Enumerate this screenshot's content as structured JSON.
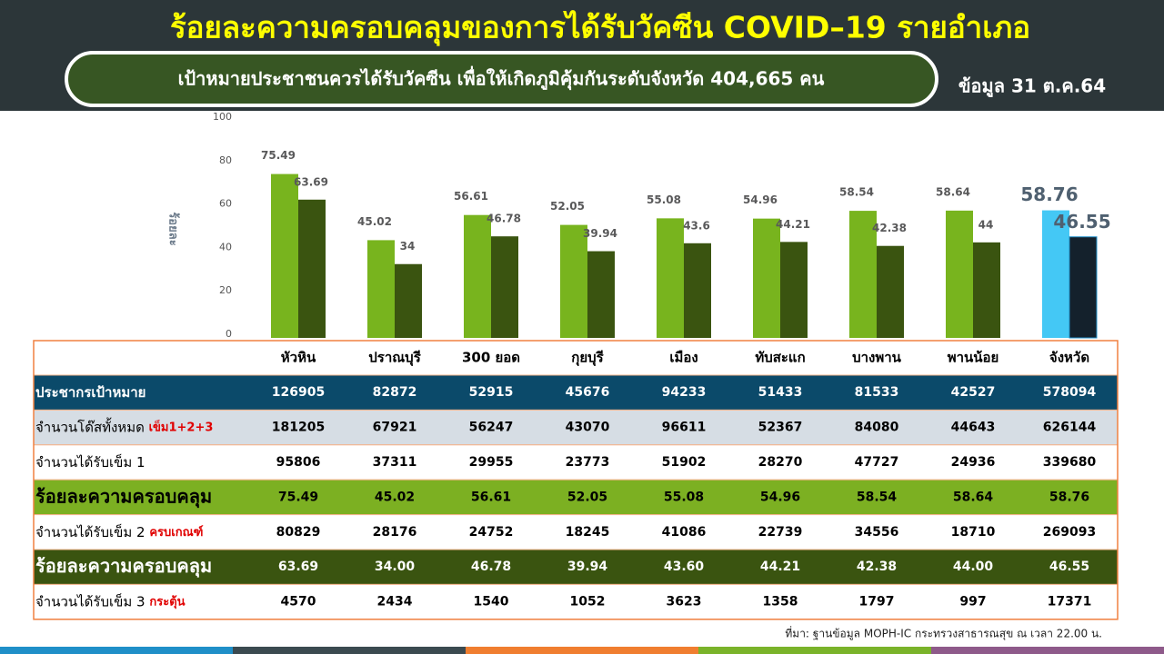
{
  "header": {
    "title": "ร้อยละความครอบคลุมของการได้รับวัคซีน COVID–19 รายอำเภอ",
    "subtitle": "เป้าหมายประชาชนควรได้รับวัคซีน  เพื่อให้เกิดภูมิคุ้มกันระดับจังหวัด 404,665 คน",
    "date": "ข้อมูล 31 ต.ค.64"
  },
  "chart_data": {
    "type": "bar",
    "y_label": "ร้อยละ",
    "categories": [
      "หัวหิน",
      "ปราณบุรี",
      "300  ยอด",
      "กุยบุรี",
      "เมือง",
      "ทับสะแก",
      "บางพาน",
      "พานน้อย",
      "จังหวัด"
    ],
    "series": [
      {
        "color": "#78b41e",
        "colors": [
          "#78b41e",
          "#78b41e",
          "#78b41e",
          "#78b41e",
          "#78b41e",
          "#78b41e",
          "#78b41e",
          "#78b41e",
          "#44c8f5"
        ],
        "values": [
          75.49,
          45.02,
          56.61,
          52.05,
          55.08,
          54.96,
          58.54,
          58.64,
          58.76
        ]
      },
      {
        "color": "#3a5410",
        "colors": [
          "#3a5410",
          "#3a5410",
          "#3a5410",
          "#3a5410",
          "#3a5410",
          "#3a5410",
          "#3a5410",
          "#3a5410",
          "#14212c"
        ],
        "values": [
          63.69,
          34,
          46.78,
          39.94,
          43.6,
          44.21,
          42.38,
          44,
          46.55
        ]
      }
    ],
    "ylim": [
      0,
      100
    ],
    "yticks": [
      0,
      20,
      40,
      60,
      80,
      100
    ],
    "grid": false
  },
  "table": {
    "rows": [
      {
        "label": "ประชากรเป้าหมาย",
        "cells": [
          "126905",
          "82872",
          "52915",
          "45676",
          "94233",
          "51433",
          "81533",
          "42527",
          "578094"
        ]
      },
      {
        "label": "จำนวนโด๊สทั้งหมด ",
        "note": "เข็ม1+2+3",
        "cells": [
          "181205",
          "67921",
          "56247",
          "43070",
          "96611",
          "52367",
          "84080",
          "44643",
          "626144"
        ]
      },
      {
        "label": "จำนวนได้รับเข็ม 1",
        "cells": [
          "95806",
          "37311",
          "29955",
          "23773",
          "51902",
          "28270",
          "47727",
          "24936",
          "339680"
        ]
      },
      {
        "label": "ร้อยละความครอบคลุม",
        "cells": [
          "75.49",
          "45.02",
          "56.61",
          "52.05",
          "55.08",
          "54.96",
          "58.54",
          "58.64",
          "58.76"
        ]
      },
      {
        "label": "จำนวนได้รับเข็ม 2 ",
        "note": "ครบเกณฑ์",
        "cells": [
          "80829",
          "28176",
          "24752",
          "18245",
          "41086",
          "22739",
          "34556",
          "18710",
          "269093"
        ]
      },
      {
        "label": "ร้อยละความครอบคลุม",
        "cells": [
          "63.69",
          "34.00",
          "46.78",
          "39.94",
          "43.60",
          "44.21",
          "42.38",
          "44.00",
          "46.55"
        ]
      },
      {
        "label": "จำนวนได้รับเข็ม 3 ",
        "note": "กระตุ้น",
        "cells": [
          "4570",
          "2434",
          "1540",
          "1052",
          "3623",
          "1358",
          "1797",
          "997",
          "17371"
        ]
      }
    ]
  },
  "source": "ที่มา: ฐานข้อมูล MOPH-IC กระทรวงสาธารณสุข ณ เวลา 22.00 น."
}
